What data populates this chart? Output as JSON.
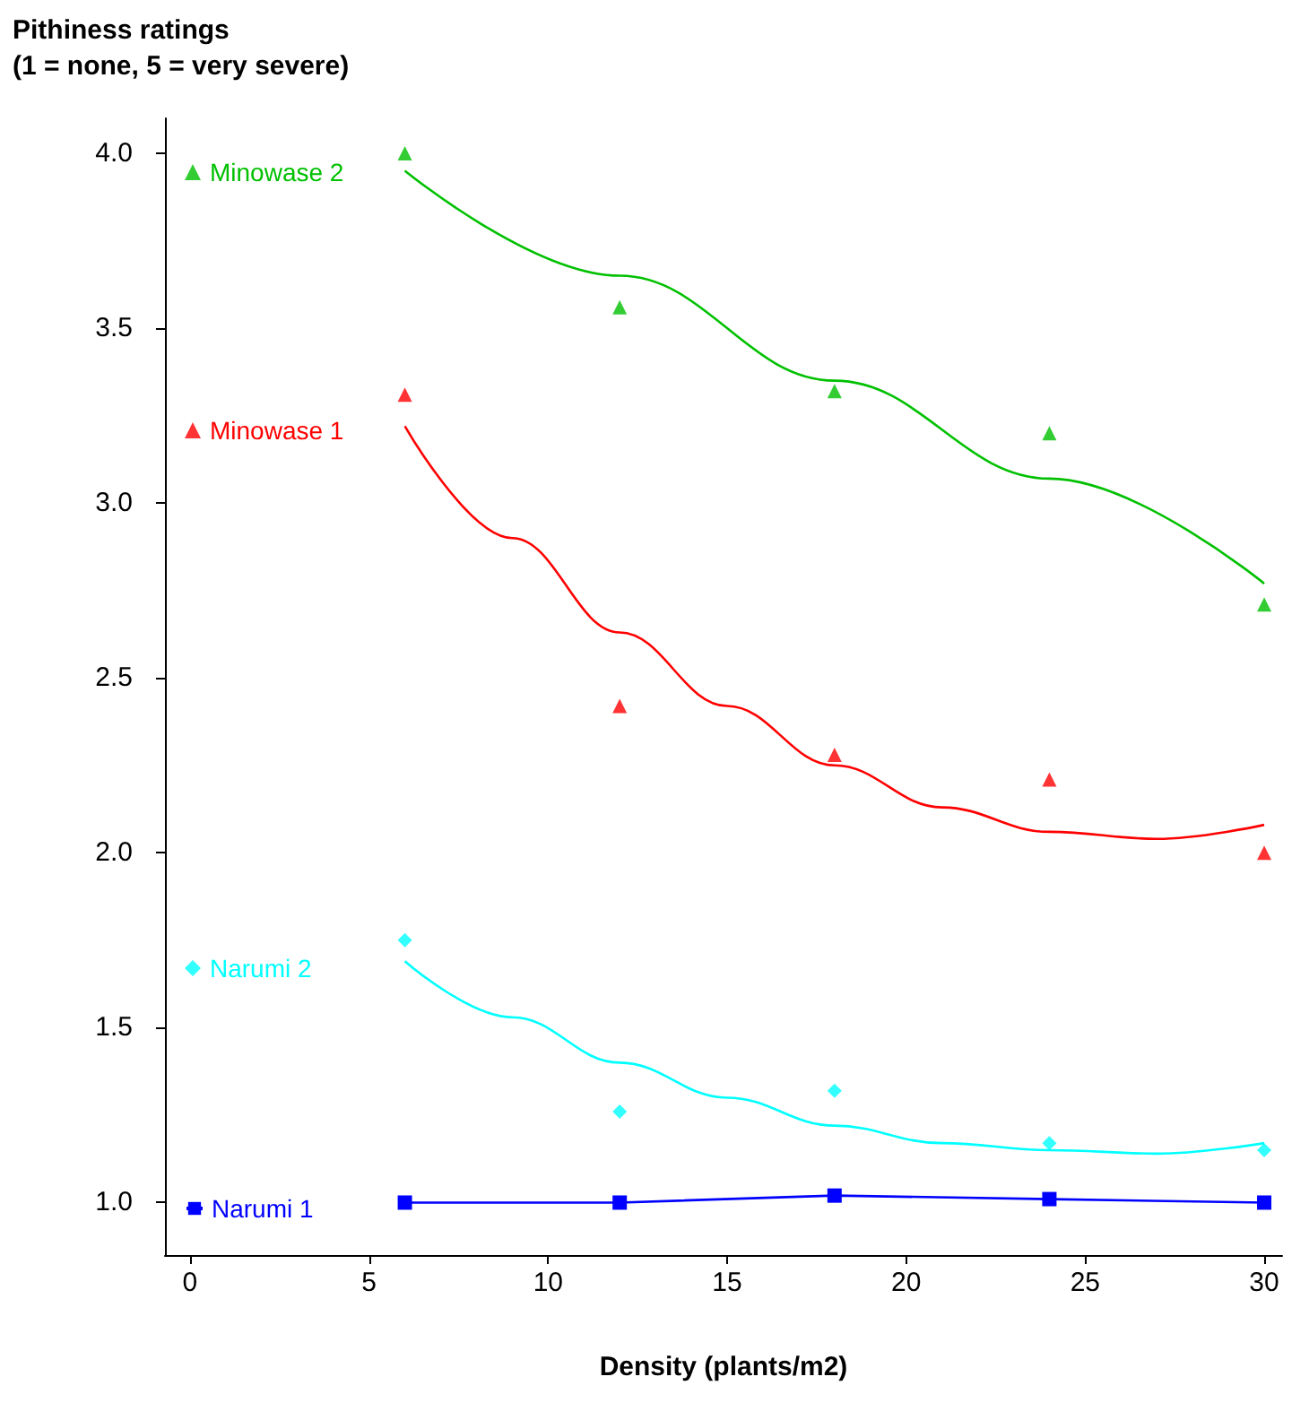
{
  "chart_data": {
    "type": "scatter",
    "ylabel": "Pithiness ratings\n(1 = none, 5 = very severe)",
    "xlabel": "Density (plants/m2)",
    "xlim": [
      -0.7,
      30.5
    ],
    "xticks": [
      0,
      5,
      10,
      15,
      20,
      25,
      30
    ],
    "ylim": [
      0.85,
      4.1
    ],
    "yticks": [
      {
        "value": 1,
        "label": "1.0"
      },
      {
        "value": 1.5,
        "label": "1.5"
      },
      {
        "value": 2,
        "label": "2.0"
      },
      {
        "value": 2.5,
        "label": "2.5"
      },
      {
        "value": 3,
        "label": "3.0"
      },
      {
        "value": 3.5,
        "label": "3.5"
      },
      {
        "value": 4,
        "label": "4.0"
      }
    ],
    "grid": false,
    "legend": "left",
    "series": [
      {
        "name": "Minowase 2",
        "marker": "triangle",
        "color": "#00c000",
        "x": [
          6,
          12,
          18,
          24,
          30
        ],
        "values": [
          4.0,
          3.56,
          3.32,
          3.2,
          2.71
        ]
      },
      {
        "name": "Minowase 1",
        "marker": "triangle",
        "color": "#ff0000",
        "x": [
          6,
          12,
          18,
          24,
          30
        ],
        "values": [
          3.31,
          2.42,
          2.28,
          2.21,
          2.0
        ]
      },
      {
        "name": "Narumi 2",
        "marker": "diamond",
        "color": "#00ffff",
        "x": [
          6,
          12,
          18,
          24,
          30
        ],
        "values": [
          1.75,
          1.26,
          1.32,
          1.17,
          1.15
        ]
      },
      {
        "name": "Narumi 1",
        "type": "line",
        "marker": "square",
        "color": "#0000ff",
        "x": [
          6,
          12,
          18,
          24,
          30
        ],
        "values": [
          1.0,
          1.0,
          1.02,
          1.01,
          1.0
        ]
      },
      {
        "type": "line",
        "marker": "none",
        "color": "#00c000",
        "x": [
          6,
          12,
          18,
          24,
          30
        ],
        "values": [
          3.95,
          3.65,
          3.35,
          3.07,
          2.77
        ]
      },
      {
        "type": "line",
        "marker": "none",
        "color": "#ff0000",
        "x": [
          6,
          9,
          12,
          15,
          18,
          21,
          24,
          27,
          30
        ],
        "values": [
          3.22,
          2.9,
          2.63,
          2.42,
          2.25,
          2.13,
          2.06,
          2.04,
          2.08
        ]
      },
      {
        "type": "line",
        "marker": "none",
        "color": "#00ffff",
        "x": [
          6,
          9,
          12,
          15,
          18,
          21,
          24,
          27,
          30
        ],
        "values": [
          1.69,
          1.53,
          1.4,
          1.3,
          1.22,
          1.17,
          1.15,
          1.14,
          1.17
        ]
      }
    ]
  }
}
